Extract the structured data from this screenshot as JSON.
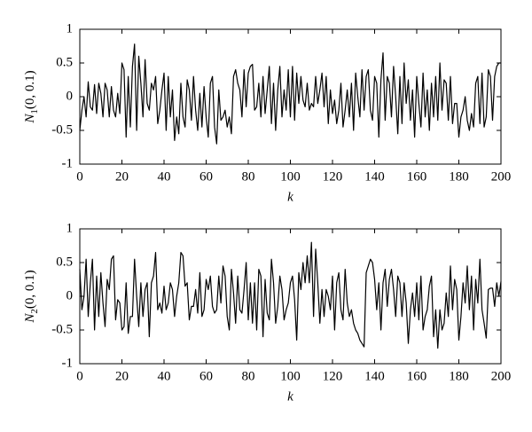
{
  "chart_data": [
    {
      "type": "line",
      "color": "#000000",
      "xlabel": "k",
      "ylabel": {
        "base": "N",
        "sub": "1",
        "rest": "(0, 0.1)"
      },
      "xlim": [
        0,
        200
      ],
      "xticks": [
        0,
        20,
        40,
        60,
        80,
        100,
        120,
        140,
        160,
        180,
        200
      ],
      "ylim": [
        -1,
        1
      ],
      "yticks": [
        -1,
        -0.5,
        0,
        0.5,
        1
      ],
      "values": [
        -0.5,
        -0.2,
        0.0,
        -0.3,
        0.22,
        -0.15,
        -0.2,
        0.18,
        -0.25,
        0.2,
        0.05,
        -0.3,
        0.2,
        0.1,
        -0.3,
        0.15,
        -0.2,
        -0.3,
        0.05,
        -0.25,
        0.5,
        0.4,
        -0.6,
        0.3,
        -0.45,
        0.45,
        0.78,
        -0.5,
        0.6,
        0.2,
        -0.3,
        0.55,
        -0.1,
        -0.2,
        0.2,
        0.1,
        0.3,
        -0.4,
        -0.2,
        0.1,
        0.35,
        -0.5,
        0.3,
        -0.3,
        0.1,
        -0.65,
        -0.3,
        -0.55,
        0.2,
        -0.3,
        -0.45,
        0.25,
        0.1,
        -0.35,
        0.3,
        -0.2,
        -0.5,
        0.05,
        -0.45,
        0.15,
        -0.3,
        -0.6,
        0.2,
        0.3,
        -0.45,
        -0.7,
        0.1,
        -0.35,
        -0.3,
        -0.2,
        -0.45,
        -0.3,
        -0.55,
        0.3,
        0.4,
        0.2,
        0.1,
        -0.3,
        0.4,
        -0.15,
        0.35,
        0.45,
        0.48,
        -0.2,
        -0.15,
        0.2,
        -0.3,
        0.3,
        -0.25,
        0.1,
        0.45,
        -0.4,
        0.2,
        -0.5,
        0.1,
        0.45,
        -0.3,
        0.1,
        -0.2,
        0.4,
        -0.3,
        0.45,
        -0.35,
        0.35,
        -0.1,
        0.3,
        -0.05,
        -0.15,
        0.2,
        -0.2,
        -0.1,
        -0.15,
        0.3,
        -0.1,
        0.1,
        0.35,
        -0.15,
        0.3,
        -0.4,
        0.1,
        -0.25,
        -0.05,
        -0.4,
        -0.2,
        0.2,
        -0.45,
        -0.2,
        0.1,
        -0.3,
        0.2,
        -0.5,
        0.35,
        0.0,
        -0.3,
        0.4,
        -0.2,
        0.3,
        0.4,
        -0.2,
        -0.35,
        0.3,
        0.2,
        -0.6,
        0.25,
        0.65,
        -0.35,
        0.3,
        0.2,
        -0.3,
        0.45,
        0.0,
        -0.55,
        0.3,
        -0.4,
        0.5,
        -0.1,
        0.25,
        -0.35,
        0.1,
        -0.6,
        0.3,
        -0.1,
        -0.45,
        0.35,
        -0.3,
        0.1,
        -0.5,
        0.2,
        -0.3,
        0.3,
        -0.35,
        0.5,
        -0.2,
        0.25,
        0.2,
        -0.35,
        0.3,
        -0.4,
        -0.1,
        -0.1,
        -0.6,
        -0.3,
        -0.2,
        0.0,
        -0.35,
        -0.5,
        -0.25,
        -0.45,
        0.2,
        0.3,
        -0.4,
        0.35,
        -0.45,
        -0.3,
        0.4,
        0.3,
        -0.35,
        0.3,
        0.45,
        0.5,
        0.5
      ]
    },
    {
      "type": "line",
      "color": "#000000",
      "xlabel": "k",
      "ylabel": {
        "base": "N",
        "sub": "2",
        "rest": "(0, 0.1)"
      },
      "xlim": [
        0,
        200
      ],
      "xticks": [
        0,
        20,
        40,
        60,
        80,
        100,
        120,
        140,
        160,
        180,
        200
      ],
      "ylim": [
        -1,
        1
      ],
      "yticks": [
        -1,
        -0.5,
        0,
        0.5,
        1
      ],
      "values": [
        0.4,
        -0.2,
        0.0,
        0.55,
        -0.3,
        0.2,
        0.55,
        -0.5,
        0.3,
        -0.3,
        0.35,
        -0.1,
        -0.45,
        0.25,
        0.1,
        0.55,
        0.6,
        -0.35,
        -0.05,
        -0.1,
        -0.5,
        -0.45,
        0.2,
        -0.55,
        -0.3,
        -0.3,
        0.55,
        0.0,
        -0.45,
        0.2,
        -0.3,
        0.1,
        0.2,
        -0.6,
        0.2,
        0.3,
        0.65,
        -0.2,
        -0.1,
        -0.25,
        0.15,
        -0.2,
        -0.1,
        0.2,
        0.1,
        -0.3,
        0.0,
        0.2,
        0.65,
        0.6,
        0.15,
        0.2,
        -0.35,
        -0.15,
        -0.15,
        0.1,
        -0.25,
        0.35,
        -0.3,
        -0.2,
        0.25,
        0.1,
        0.3,
        -0.15,
        -0.25,
        -0.2,
        0.3,
        -0.1,
        0.45,
        0.3,
        -0.3,
        -0.5,
        0.4,
        0.05,
        -0.4,
        0.3,
        -0.2,
        -0.25,
        0.1,
        0.5,
        -0.35,
        0.2,
        -0.4,
        0.2,
        -0.5,
        0.4,
        0.3,
        -0.6,
        0.25,
        -0.25,
        -0.35,
        0.55,
        0.2,
        -0.4,
        -0.15,
        0.3,
        0.1,
        -0.35,
        -0.2,
        -0.1,
        0.2,
        0.3,
        -0.05,
        -0.65,
        0.35,
        0.1,
        0.5,
        0.2,
        0.6,
        0.2,
        0.8,
        -0.3,
        0.7,
        0.2,
        -0.4,
        0.1,
        -0.3,
        0.1,
        0.0,
        -0.2,
        0.3,
        -0.5,
        0.2,
        0.35,
        -0.2,
        -0.35,
        0.4,
        -0.1,
        -0.3,
        -0.2,
        -0.4,
        -0.5,
        -0.55,
        -0.65,
        -0.7,
        -0.75,
        0.35,
        0.45,
        0.55,
        0.5,
        0.25,
        -0.2,
        0.2,
        -0.5,
        0.2,
        0.4,
        -0.15,
        0.25,
        0.4,
        0.1,
        -0.3,
        0.3,
        0.2,
        -0.3,
        0.2,
        -0.1,
        -0.7,
        -0.2,
        0.05,
        -0.3,
        0.2,
        -0.35,
        0.3,
        -0.5,
        -0.3,
        -0.2,
        0.15,
        0.3,
        -0.6,
        -0.2,
        -0.77,
        -0.2,
        -0.5,
        -0.4,
        0.05,
        -0.3,
        0.45,
        -0.2,
        0.25,
        0.1,
        -0.65,
        -0.3,
        0.2,
        -0.1,
        0.45,
        -0.2,
        0.3,
        -0.5,
        0.25,
        -0.1,
        0.55,
        -0.2,
        -0.4,
        -0.62,
        0.1,
        0.12,
        0.12,
        -0.15,
        0.2,
        0.0,
        0.22
      ]
    }
  ]
}
